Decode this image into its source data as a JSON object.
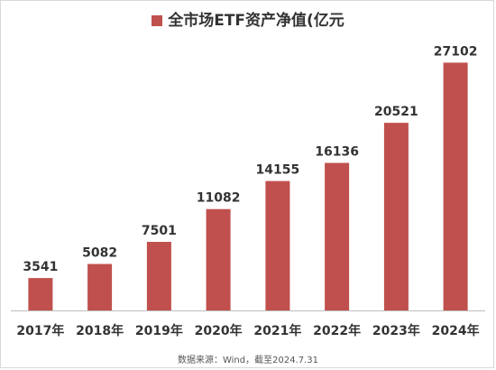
{
  "chart_data": {
    "type": "bar",
    "categories": [
      "2017年",
      "2018年",
      "2019年",
      "2020年",
      "2021年",
      "2022年",
      "2023年",
      "2024年"
    ],
    "series": [
      {
        "name": "全市场ETF资产净值(亿元",
        "values": [
          3541,
          5082,
          7501,
          11082,
          14155,
          16136,
          20521,
          27102
        ],
        "color": "#c0504d"
      }
    ],
    "title": "",
    "xlabel": "",
    "ylabel": "",
    "ylim": [
      0,
      30000
    ],
    "grid": false,
    "legend": "top-center",
    "data_labels": true
  },
  "source_note": "数据来源：Wind，截至2024.7.31"
}
